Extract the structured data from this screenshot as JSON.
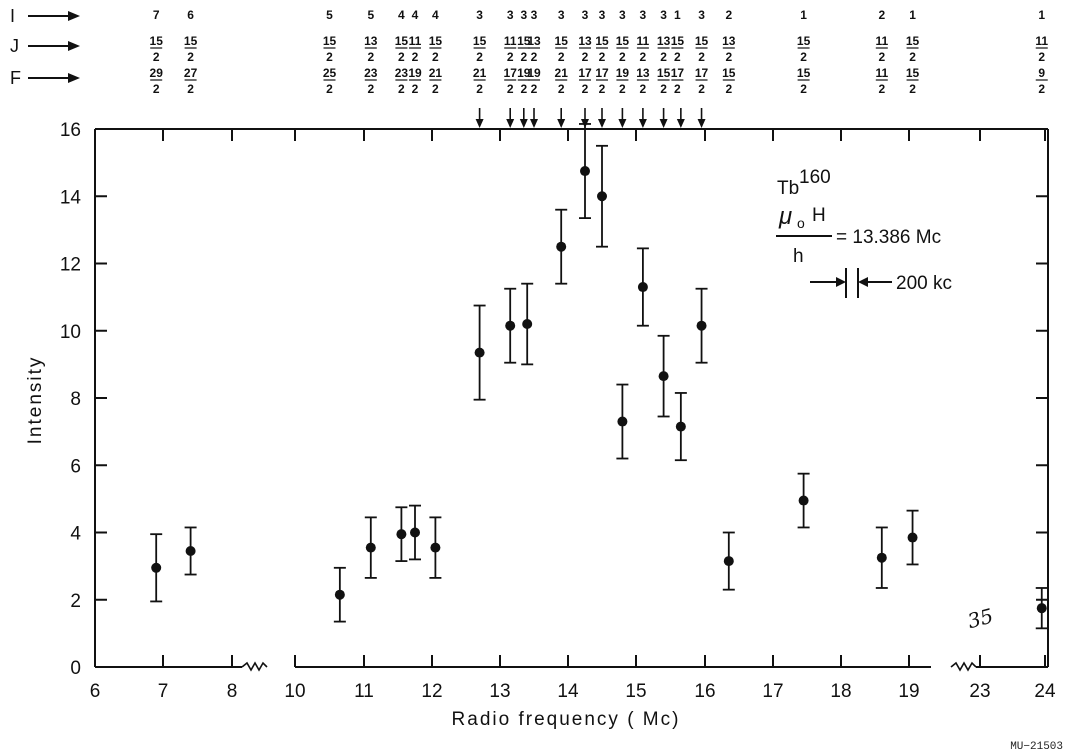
{
  "chart_data": {
    "type": "scatter",
    "title": "",
    "xlabel": "Radio frequency ( Mc)",
    "ylabel": "Intensity",
    "ylim": [
      0,
      16
    ],
    "y_ticks": [
      "0",
      "2",
      "4",
      "6",
      "8",
      "10",
      "12",
      "14",
      "16"
    ],
    "x_ticks": [
      "6",
      "7",
      "8",
      "10",
      "11",
      "12",
      "13",
      "14",
      "15",
      "16",
      "17",
      "18",
      "19",
      "23",
      "24"
    ],
    "x_axis_breaks": [
      "8-10",
      "19-23"
    ],
    "error_bars": true,
    "grid": false,
    "series": [
      {
        "points": [
          {
            "x": 6.9,
            "y": 2.95,
            "err": 1.0
          },
          {
            "x": 7.4,
            "y": 3.45,
            "err": 0.7
          },
          {
            "x": 10.65,
            "y": 2.15,
            "err": 0.8
          },
          {
            "x": 11.1,
            "y": 3.55,
            "err": 0.9
          },
          {
            "x": 11.55,
            "y": 3.95,
            "err": 0.8
          },
          {
            "x": 11.75,
            "y": 4.0,
            "err": 0.8
          },
          {
            "x": 12.05,
            "y": 3.55,
            "err": 0.9
          },
          {
            "x": 12.7,
            "y": 9.35,
            "err": 1.4
          },
          {
            "x": 13.15,
            "y": 10.15,
            "err": 1.1
          },
          {
            "x": 13.4,
            "y": 10.2,
            "err": 1.2
          },
          {
            "x": 13.9,
            "y": 12.5,
            "err": 1.1
          },
          {
            "x": 14.25,
            "y": 14.75,
            "err": 1.4
          },
          {
            "x": 14.5,
            "y": 14.0,
            "err": 1.5
          },
          {
            "x": 14.8,
            "y": 7.3,
            "err": 1.1
          },
          {
            "x": 15.1,
            "y": 11.3,
            "err": 1.15
          },
          {
            "x": 15.4,
            "y": 8.65,
            "err": 1.2
          },
          {
            "x": 15.65,
            "y": 7.15,
            "err": 1.0
          },
          {
            "x": 15.95,
            "y": 10.15,
            "err": 1.1
          },
          {
            "x": 16.35,
            "y": 3.15,
            "err": 0.85
          },
          {
            "x": 17.45,
            "y": 4.95,
            "err": 0.8
          },
          {
            "x": 18.6,
            "y": 3.25,
            "err": 0.9
          },
          {
            "x": 19.2,
            "y": 3.85,
            "err": 0.8
          },
          {
            "x": 23.95,
            "y": 1.75,
            "err": 0.6
          }
        ]
      }
    ],
    "quantum_numbers": {
      "row_labels": [
        "I",
        "J",
        "F"
      ],
      "columns": [
        {
          "x": 6.9,
          "I": "7",
          "J": [
            "15",
            "2"
          ],
          "F": [
            "29",
            "2"
          ]
        },
        {
          "x": 7.4,
          "I": "6",
          "J": [
            "15",
            "2"
          ],
          "F": [
            "27",
            "2"
          ]
        },
        {
          "x": 10.5,
          "I": "5",
          "J": [
            "15",
            "2"
          ],
          "F": [
            "25",
            "2"
          ]
        },
        {
          "x": 11.1,
          "I": "5",
          "J": [
            "13",
            "2"
          ],
          "F": [
            "23",
            "2"
          ]
        },
        {
          "x": 11.55,
          "I": "4",
          "J": [
            "15",
            "2"
          ],
          "F": [
            "23",
            "2"
          ]
        },
        {
          "x": 11.75,
          "I": "4",
          "J": [
            "11",
            "2"
          ],
          "F": [
            "19",
            "2"
          ]
        },
        {
          "x": 12.05,
          "I": "4",
          "J": [
            "15",
            "2"
          ],
          "F": [
            "21",
            "2"
          ]
        },
        {
          "x": 12.7,
          "I": "3",
          "J": [
            "15",
            "2"
          ],
          "F": [
            "21",
            "2"
          ]
        },
        {
          "x": 13.15,
          "I": "3",
          "J": [
            "11",
            "2"
          ],
          "F": [
            "17",
            "2"
          ]
        },
        {
          "x": 13.35,
          "I": "3",
          "J": [
            "15",
            "2"
          ],
          "F": [
            "19",
            "2"
          ]
        },
        {
          "x": 13.5,
          "I": "3",
          "J": [
            "13",
            "2"
          ],
          "F": [
            "19",
            "2"
          ]
        },
        {
          "x": 13.9,
          "I": "3",
          "J": [
            "15",
            "2"
          ],
          "F": [
            "21",
            "2"
          ]
        },
        {
          "x": 14.25,
          "I": "3",
          "J": [
            "13",
            "2"
          ],
          "F": [
            "17",
            "2"
          ]
        },
        {
          "x": 14.5,
          "I": "3",
          "J": [
            "15",
            "2"
          ],
          "F": [
            "17",
            "2"
          ]
        },
        {
          "x": 14.8,
          "I": "3",
          "J": [
            "15",
            "2"
          ],
          "F": [
            "19",
            "2"
          ]
        },
        {
          "x": 15.1,
          "I": "3",
          "J": [
            "11",
            "2"
          ],
          "F": [
            "13",
            "2"
          ]
        },
        {
          "x": 15.4,
          "I": "3",
          "J": [
            "13",
            "2"
          ],
          "F": [
            "15",
            "2"
          ]
        },
        {
          "x": 15.6,
          "I": "1",
          "J": [
            "15",
            "2"
          ],
          "F": [
            "17",
            "2"
          ]
        },
        {
          "x": 15.95,
          "I": "3",
          "J": [
            "15",
            "2"
          ],
          "F": [
            "17",
            "2"
          ]
        },
        {
          "x": 16.35,
          "I": "2",
          "J": [
            "13",
            "2"
          ],
          "F": [
            "15",
            "2"
          ]
        },
        {
          "x": 17.45,
          "I": "1",
          "J": [
            "15",
            "2"
          ],
          "F": [
            "15",
            "2"
          ]
        },
        {
          "x": 18.6,
          "I": "2",
          "J": [
            "11",
            "2"
          ],
          "F": [
            "11",
            "2"
          ]
        },
        {
          "x": 19.2,
          "I": "1",
          "J": [
            "15",
            "2"
          ],
          "F": [
            "15",
            "2"
          ]
        },
        {
          "x": 23.95,
          "I": "1",
          "J": [
            "11",
            "2"
          ],
          "F": [
            "9",
            "2"
          ]
        }
      ]
    },
    "resonance_arrows_x": [
      12.7,
      13.15,
      13.35,
      13.5,
      13.9,
      14.25,
      14.5,
      14.8,
      15.1,
      15.4,
      15.65,
      15.95
    ],
    "annotations": {
      "isotope": "Tb",
      "isotope_mass": "160",
      "field_symbol": "μ",
      "field_sub": "o",
      "field_h_upper": "H",
      "field_h_lower": "h",
      "field_value": "= 13.386  Mc",
      "scale_label": "200 kc",
      "handwritten": "35"
    },
    "figure_id": "MU−21503"
  }
}
